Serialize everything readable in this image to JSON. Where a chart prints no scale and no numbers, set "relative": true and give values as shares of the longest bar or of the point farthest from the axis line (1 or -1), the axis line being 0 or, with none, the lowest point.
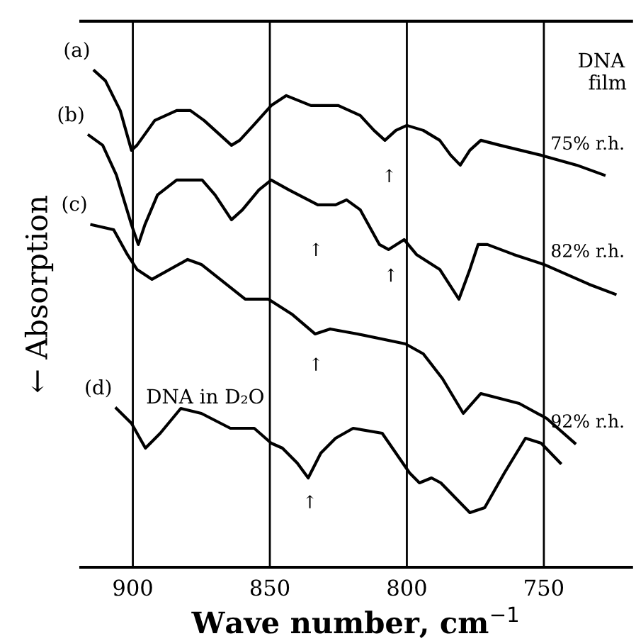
{
  "chart_data": {
    "type": "line",
    "relative": true,
    "xlabel": "Wave number, cm$^{−1}$",
    "ylabel": "← Absorption",
    "xlim": [
      919,
      718
    ],
    "xticks": [
      900,
      850,
      800,
      750
    ],
    "grid": "x",
    "marker": "none",
    "line_style": "solid",
    "series": [
      {
        "name": "(a)",
        "color": "#000000",
        "x": [
          914,
          910,
          904.6,
          900.5,
          898.5,
          892,
          884,
          879,
          874,
          864,
          861,
          856,
          849.5,
          844,
          835,
          825,
          817,
          812,
          808,
          804,
          800,
          794,
          788,
          784,
          780.5,
          777,
          773,
          766,
          751,
          738,
          728
        ],
        "values": [
          1.0,
          0.98,
          0.92,
          0.84,
          0.85,
          0.9,
          0.92,
          0.92,
          0.9,
          0.85,
          0.86,
          0.89,
          0.93,
          0.95,
          0.93,
          0.93,
          0.91,
          0.88,
          0.86,
          0.88,
          0.89,
          0.88,
          0.86,
          0.83,
          0.81,
          0.84,
          0.86,
          0.85,
          0.83,
          0.81,
          0.79
        ]
      },
      {
        "name": "(b)",
        "color": "#000000",
        "x": [
          916,
          911,
          906,
          900.5,
          898,
          895.6,
          891,
          884,
          874.7,
          870,
          864,
          860,
          854,
          849.5,
          843,
          832.5,
          826,
          822,
          817,
          810,
          806.7,
          801,
          796.5,
          788,
          784.5,
          781,
          777,
          774,
          770.6,
          761,
          750,
          733.5,
          724
        ],
        "values": [
          0.87,
          0.85,
          0.79,
          0.69,
          0.65,
          0.69,
          0.75,
          0.78,
          0.78,
          0.75,
          0.7,
          0.72,
          0.76,
          0.78,
          0.76,
          0.73,
          0.73,
          0.74,
          0.72,
          0.65,
          0.64,
          0.66,
          0.63,
          0.6,
          0.57,
          0.54,
          0.6,
          0.65,
          0.65,
          0.63,
          0.61,
          0.57,
          0.55
        ]
      },
      {
        "name": "(c)",
        "color": "#000000",
        "x": [
          915,
          907,
          902,
          898.5,
          893,
          880,
          875,
          859,
          850.5,
          842,
          833.5,
          828,
          818,
          800.5,
          794,
          787,
          779.4,
          773,
          759,
          749,
          738.7
        ],
        "values": [
          0.69,
          0.68,
          0.63,
          0.6,
          0.58,
          0.62,
          0.61,
          0.54,
          0.54,
          0.51,
          0.47,
          0.48,
          0.47,
          0.45,
          0.43,
          0.38,
          0.31,
          0.35,
          0.33,
          0.3,
          0.25
        ]
      },
      {
        "name": "(d)",
        "color": "#000000",
        "x": [
          906,
          900.5,
          895.4,
          890,
          882.5,
          875,
          864.4,
          855.7,
          849.5,
          845.4,
          840,
          836,
          831.4,
          826,
          819.6,
          809,
          804,
          799,
          795.4,
          791,
          787.6,
          777,
          771.6,
          764.4,
          756.7,
          751,
          744
        ],
        "values": [
          0.32,
          0.29,
          0.24,
          0.27,
          0.32,
          0.31,
          0.28,
          0.28,
          0.25,
          0.24,
          0.21,
          0.18,
          0.23,
          0.26,
          0.28,
          0.27,
          0.23,
          0.19,
          0.17,
          0.18,
          0.17,
          0.11,
          0.12,
          0.19,
          0.26,
          0.25,
          0.21
        ]
      }
    ],
    "annotations": [
      "DNA\n  film",
      "75% r.h.",
      "82% r.h.",
      "92% r.h.",
      "DNA in D₂O",
      "↑",
      "↑",
      "↑",
      "↑",
      "↑"
    ]
  }
}
